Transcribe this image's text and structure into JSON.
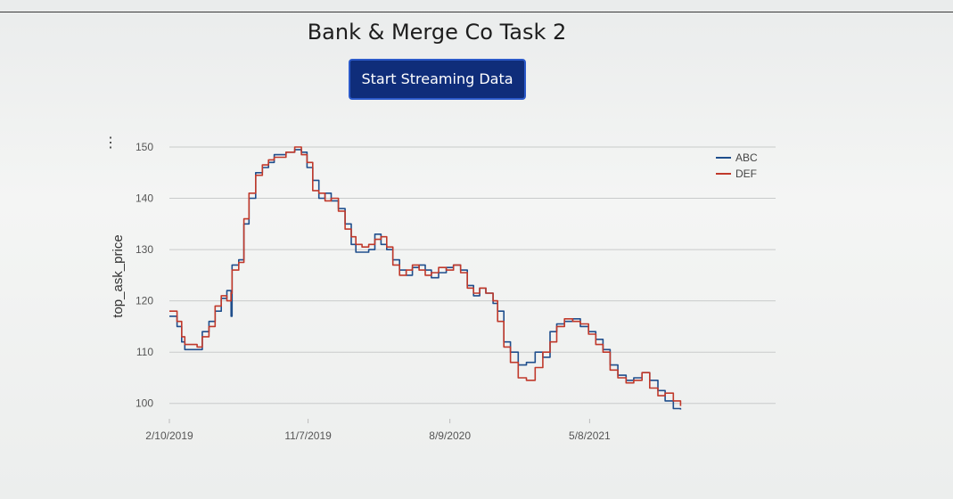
{
  "app": {
    "title": "Bank & Merge Co Task 2",
    "stream_button_label": "Start Streaming Data",
    "menu_icon": "vertical-ellipsis-icon"
  },
  "colors": {
    "ABC": "#1f4e8c",
    "DEF": "#c0392b",
    "button_bg": "#0f2d7a",
    "grid": "#c9cbcb"
  },
  "chart_data": {
    "type": "line",
    "title": "",
    "xlabel": "",
    "ylabel": "top_ask_price",
    "ylim": [
      97,
      150
    ],
    "yticks": [
      100,
      110,
      120,
      130,
      140,
      150
    ],
    "xlim": [
      "2019-02-10",
      "2022-05-05"
    ],
    "xticks": [
      {
        "date": "2019-02-10",
        "label": "2/10/2019"
      },
      {
        "date": "2019-11-07",
        "label": "11/7/2019"
      },
      {
        "date": "2020-08-09",
        "label": "8/9/2020"
      },
      {
        "date": "2021-05-08",
        "label": "5/8/2021"
      }
    ],
    "grid": true,
    "legend_position": "top-right",
    "series": [
      {
        "name": "ABC",
        "points": [
          [
            "2019-02-10",
            117
          ],
          [
            "2019-02-25",
            115
          ],
          [
            "2019-03-06",
            112
          ],
          [
            "2019-03-12",
            110.5
          ],
          [
            "2019-04-05",
            110.5
          ],
          [
            "2019-04-15",
            114
          ],
          [
            "2019-04-28",
            116
          ],
          [
            "2019-05-10",
            118
          ],
          [
            "2019-05-22",
            120.5
          ],
          [
            "2019-06-02",
            122
          ],
          [
            "2019-06-10",
            117
          ],
          [
            "2019-06-12",
            127
          ],
          [
            "2019-06-25",
            128
          ],
          [
            "2019-07-05",
            135
          ],
          [
            "2019-07-15",
            140
          ],
          [
            "2019-07-28",
            145
          ],
          [
            "2019-08-10",
            146
          ],
          [
            "2019-08-22",
            147
          ],
          [
            "2019-09-02",
            148.5
          ],
          [
            "2019-09-25",
            149
          ],
          [
            "2019-10-12",
            149.5
          ],
          [
            "2019-10-25",
            149
          ],
          [
            "2019-11-05",
            146
          ],
          [
            "2019-11-16",
            143.5
          ],
          [
            "2019-11-28",
            140
          ],
          [
            "2019-12-10",
            141
          ],
          [
            "2019-12-22",
            139.5
          ],
          [
            "2020-01-05",
            138
          ],
          [
            "2020-01-18",
            135
          ],
          [
            "2020-01-30",
            131
          ],
          [
            "2020-02-08",
            129.5
          ],
          [
            "2020-02-20",
            129.5
          ],
          [
            "2020-03-04",
            130
          ],
          [
            "2020-03-16",
            133
          ],
          [
            "2020-03-28",
            131
          ],
          [
            "2020-04-08",
            130
          ],
          [
            "2020-04-20",
            128
          ],
          [
            "2020-05-03",
            126
          ],
          [
            "2020-05-16",
            125
          ],
          [
            "2020-05-28",
            126.5
          ],
          [
            "2020-06-10",
            127
          ],
          [
            "2020-06-22",
            126
          ],
          [
            "2020-07-04",
            124.5
          ],
          [
            "2020-07-18",
            125.5
          ],
          [
            "2020-08-02",
            126.5
          ],
          [
            "2020-08-16",
            127
          ],
          [
            "2020-08-30",
            126
          ],
          [
            "2020-09-12",
            123
          ],
          [
            "2020-09-24",
            121
          ],
          [
            "2020-10-06",
            122.5
          ],
          [
            "2020-10-18",
            121.5
          ],
          [
            "2020-11-01",
            119.5
          ],
          [
            "2020-11-10",
            118
          ],
          [
            "2020-11-22",
            112
          ],
          [
            "2020-12-05",
            110
          ],
          [
            "2020-12-20",
            107.5
          ],
          [
            "2021-01-05",
            108
          ],
          [
            "2021-01-22",
            110
          ],
          [
            "2021-02-06",
            109
          ],
          [
            "2021-02-20",
            114
          ],
          [
            "2021-03-05",
            115.5
          ],
          [
            "2021-03-20",
            116
          ],
          [
            "2021-04-05",
            116.5
          ],
          [
            "2021-04-20",
            115
          ],
          [
            "2021-05-06",
            114
          ],
          [
            "2021-05-20",
            112.5
          ],
          [
            "2021-06-03",
            110.5
          ],
          [
            "2021-06-17",
            107.5
          ],
          [
            "2021-07-02",
            105.5
          ],
          [
            "2021-07-18",
            104.5
          ],
          [
            "2021-08-02",
            105
          ],
          [
            "2021-08-18",
            106
          ],
          [
            "2021-09-02",
            104.5
          ],
          [
            "2021-09-18",
            102.5
          ],
          [
            "2021-10-02",
            100.5
          ],
          [
            "2021-10-18",
            99
          ],
          [
            "2021-11-01",
            98.8
          ]
        ]
      },
      {
        "name": "DEF",
        "points": [
          [
            "2019-02-10",
            118
          ],
          [
            "2019-02-25",
            116
          ],
          [
            "2019-03-06",
            113
          ],
          [
            "2019-03-12",
            111.5
          ],
          [
            "2019-04-05",
            111
          ],
          [
            "2019-04-15",
            113
          ],
          [
            "2019-04-28",
            115
          ],
          [
            "2019-05-10",
            119
          ],
          [
            "2019-05-22",
            121
          ],
          [
            "2019-06-02",
            120
          ],
          [
            "2019-06-10",
            121.5
          ],
          [
            "2019-06-12",
            126
          ],
          [
            "2019-06-25",
            127.5
          ],
          [
            "2019-07-05",
            136
          ],
          [
            "2019-07-15",
            141
          ],
          [
            "2019-07-28",
            144.5
          ],
          [
            "2019-08-10",
            146.5
          ],
          [
            "2019-08-22",
            147.5
          ],
          [
            "2019-09-02",
            148
          ],
          [
            "2019-09-25",
            149
          ],
          [
            "2019-10-12",
            150
          ],
          [
            "2019-10-25",
            148.5
          ],
          [
            "2019-11-05",
            147
          ],
          [
            "2019-11-16",
            141.5
          ],
          [
            "2019-11-28",
            141
          ],
          [
            "2019-12-10",
            139.5
          ],
          [
            "2019-12-22",
            140
          ],
          [
            "2020-01-05",
            137.5
          ],
          [
            "2020-01-18",
            134
          ],
          [
            "2020-01-30",
            132.5
          ],
          [
            "2020-02-08",
            131
          ],
          [
            "2020-02-20",
            130.5
          ],
          [
            "2020-03-04",
            131
          ],
          [
            "2020-03-16",
            132
          ],
          [
            "2020-03-28",
            132.5
          ],
          [
            "2020-04-08",
            130.5
          ],
          [
            "2020-04-20",
            127
          ],
          [
            "2020-05-03",
            125
          ],
          [
            "2020-05-16",
            126
          ],
          [
            "2020-05-28",
            127
          ],
          [
            "2020-06-10",
            126
          ],
          [
            "2020-06-22",
            125
          ],
          [
            "2020-07-04",
            125.5
          ],
          [
            "2020-07-18",
            126.5
          ],
          [
            "2020-08-02",
            126
          ],
          [
            "2020-08-16",
            127
          ],
          [
            "2020-08-30",
            125.5
          ],
          [
            "2020-09-12",
            122.5
          ],
          [
            "2020-09-24",
            121.5
          ],
          [
            "2020-10-06",
            122.5
          ],
          [
            "2020-10-18",
            121.5
          ],
          [
            "2020-11-01",
            120
          ],
          [
            "2020-11-10",
            116
          ],
          [
            "2020-11-22",
            111
          ],
          [
            "2020-12-05",
            108
          ],
          [
            "2020-12-20",
            105
          ],
          [
            "2021-01-05",
            104.5
          ],
          [
            "2021-01-22",
            107
          ],
          [
            "2021-02-06",
            110
          ],
          [
            "2021-02-20",
            112
          ],
          [
            "2021-03-05",
            115
          ],
          [
            "2021-03-20",
            116.5
          ],
          [
            "2021-04-05",
            116
          ],
          [
            "2021-04-20",
            115.5
          ],
          [
            "2021-05-06",
            113.5
          ],
          [
            "2021-05-20",
            111.5
          ],
          [
            "2021-06-03",
            110
          ],
          [
            "2021-06-17",
            106.5
          ],
          [
            "2021-07-02",
            105
          ],
          [
            "2021-07-18",
            104
          ],
          [
            "2021-08-02",
            104.5
          ],
          [
            "2021-08-18",
            106
          ],
          [
            "2021-09-02",
            103
          ],
          [
            "2021-09-18",
            101.5
          ],
          [
            "2021-10-02",
            102
          ],
          [
            "2021-10-18",
            100.5
          ],
          [
            "2021-11-01",
            99.5
          ]
        ]
      }
    ]
  }
}
